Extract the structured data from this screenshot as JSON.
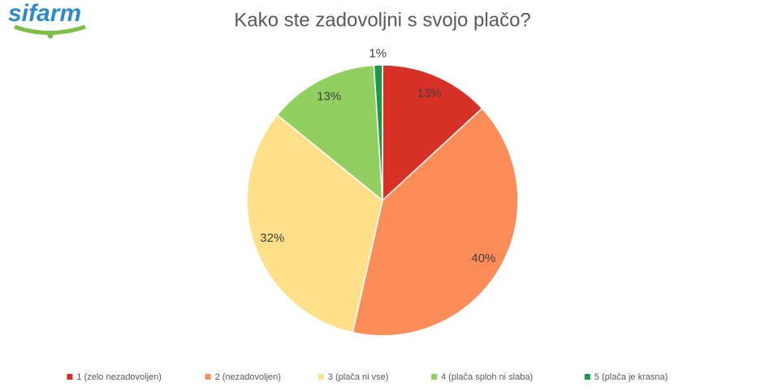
{
  "logo": "sifarm",
  "chart_data": {
    "type": "pie",
    "title": "Kako ste zadovoljni s svojo plačo?",
    "categories": [
      "1 (zelo nezadovoljen)",
      "2 (nezadovoljen)",
      "3 (plača ni vse)",
      "4 (plača sploh ni slaba)",
      "5 (plača je krasna)"
    ],
    "values": [
      13,
      40,
      32,
      13,
      1
    ],
    "value_labels": [
      "13%",
      "40%",
      "32%",
      "13%",
      "1%"
    ],
    "colors": [
      "#d73027",
      "#fc8d59",
      "#fee08b",
      "#91cf60",
      "#1a9850"
    ],
    "legend": "bottom"
  }
}
